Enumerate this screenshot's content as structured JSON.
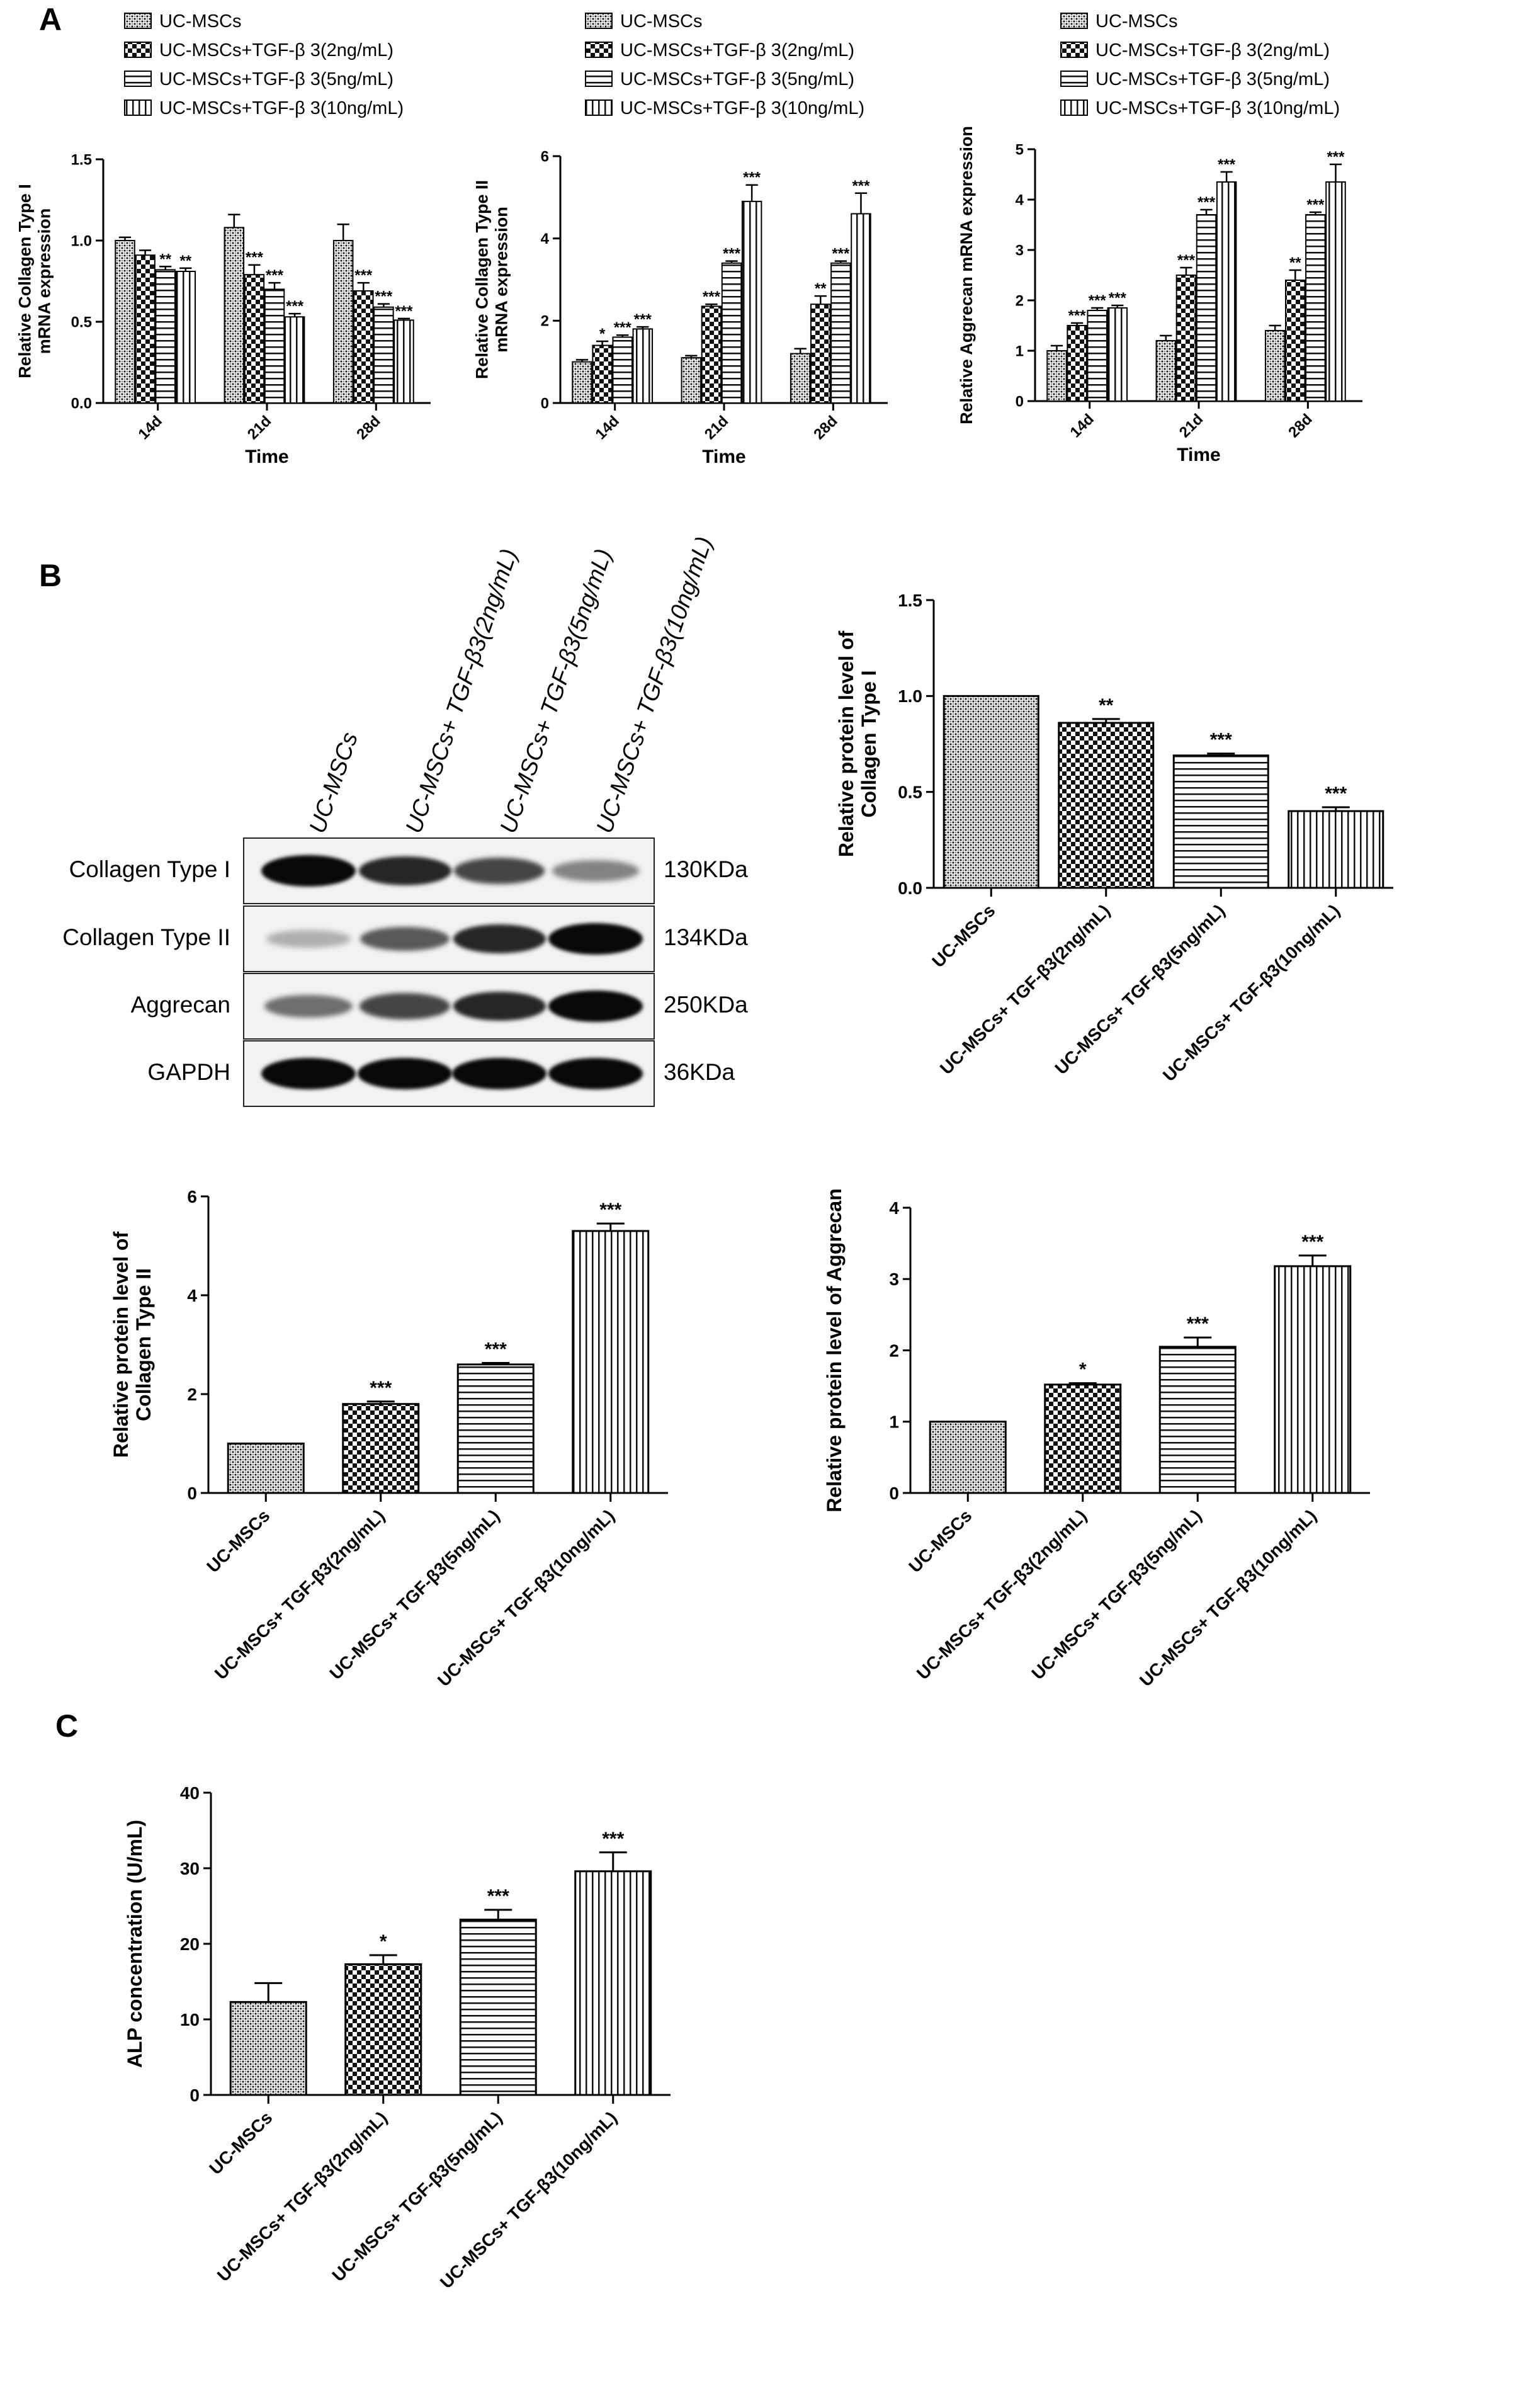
{
  "panels": {
    "a": "A",
    "b": "B",
    "c": "C"
  },
  "patterns": {
    "uc": "dots",
    "tgf2": "checker",
    "tgf5": "hlines",
    "tgf10": "vlines"
  },
  "blot": {
    "lanes": [
      "UC-MSCs",
      "UC-MSCs+ TGF-β3(2ng/mL)",
      "UC-MSCs+ TGF-β3(5ng/mL)",
      "UC-MSCs+ TGF-β3(10ng/mL)"
    ],
    "rows": [
      {
        "label": "Collagen Type I",
        "kda": "130KDa",
        "intensity": [
          1.0,
          0.85,
          0.7,
          0.4
        ]
      },
      {
        "label": "Collagen Type II",
        "kda": "134KDa",
        "intensity": [
          0.18,
          0.6,
          0.85,
          1.0
        ]
      },
      {
        "label": "Aggrecan",
        "kda": "250KDa",
        "intensity": [
          0.5,
          0.7,
          0.85,
          1.0
        ]
      },
      {
        "label": "GAPDH",
        "kda": "36KDa",
        "intensity": [
          1.0,
          1.0,
          1.0,
          1.0
        ]
      }
    ]
  },
  "chart_data": [
    {
      "id": "a1",
      "type": "bar",
      "legend": [
        "UC-MSCs",
        "UC-MSCs+TGF-β 3(2ng/mL)",
        "UC-MSCs+TGF-β 3(5ng/mL)",
        "UC-MSCs+TGF-β 3(10ng/mL)"
      ],
      "categories": [
        "14d",
        "21d",
        "28d"
      ],
      "series": [
        {
          "values": [
            1.0,
            1.08,
            1.0
          ],
          "err": [
            0.02,
            0.08,
            0.1
          ],
          "sig": [
            "",
            "",
            ""
          ]
        },
        {
          "values": [
            0.91,
            0.79,
            0.69
          ],
          "err": [
            0.03,
            0.06,
            0.05
          ],
          "sig": [
            "",
            "***",
            "***"
          ]
        },
        {
          "values": [
            0.82,
            0.7,
            0.59
          ],
          "err": [
            0.02,
            0.04,
            0.02
          ],
          "sig": [
            "**",
            "***",
            "***"
          ]
        },
        {
          "values": [
            0.81,
            0.53,
            0.51
          ],
          "err": [
            0.02,
            0.02,
            0.01
          ],
          "sig": [
            "**",
            "***",
            "***"
          ]
        }
      ],
      "ylabel": [
        "Relative Collagen Type I",
        "mRNA expression"
      ],
      "xlabel": "Time",
      "ylim": [
        0,
        1.5
      ],
      "yticks": [
        "0.0",
        "0.5",
        "1.0",
        "1.5"
      ],
      "ytick_values": [
        0,
        0.5,
        1.0,
        1.5
      ]
    },
    {
      "id": "a2",
      "type": "bar",
      "legend": [
        "UC-MSCs",
        "UC-MSCs+TGF-β 3(2ng/mL)",
        "UC-MSCs+TGF-β 3(5ng/mL)",
        "UC-MSCs+TGF-β 3(10ng/mL)"
      ],
      "categories": [
        "14d",
        "21d",
        "28d"
      ],
      "series": [
        {
          "values": [
            1.0,
            1.1,
            1.2
          ],
          "err": [
            0.05,
            0.05,
            0.12
          ],
          "sig": [
            "",
            "",
            ""
          ]
        },
        {
          "values": [
            1.4,
            2.35,
            2.4
          ],
          "err": [
            0.1,
            0.05,
            0.2
          ],
          "sig": [
            "*",
            "***",
            "**"
          ]
        },
        {
          "values": [
            1.6,
            3.4,
            3.4
          ],
          "err": [
            0.05,
            0.05,
            0.05
          ],
          "sig": [
            "***",
            "***",
            "***"
          ]
        },
        {
          "values": [
            1.8,
            4.9,
            4.6
          ],
          "err": [
            0.05,
            0.4,
            0.5
          ],
          "sig": [
            "***",
            "***",
            "***"
          ]
        }
      ],
      "ylabel": [
        "Relative Collagen Type II",
        "mRNA expression"
      ],
      "xlabel": "Time",
      "ylim": [
        0,
        6
      ],
      "yticks": [
        "0",
        "2",
        "4",
        "6"
      ],
      "ytick_values": [
        0,
        2,
        4,
        6
      ]
    },
    {
      "id": "a3",
      "type": "bar",
      "legend": [
        "UC-MSCs",
        "UC-MSCs+TGF-β 3(2ng/mL)",
        "UC-MSCs+TGF-β 3(5ng/mL)",
        "UC-MSCs+TGF-β 3(10ng/mL)"
      ],
      "categories": [
        "14d",
        "21d",
        "28d"
      ],
      "series": [
        {
          "values": [
            1.0,
            1.2,
            1.4
          ],
          "err": [
            0.1,
            0.1,
            0.1
          ],
          "sig": [
            "",
            "",
            ""
          ]
        },
        {
          "values": [
            1.5,
            2.5,
            2.4
          ],
          "err": [
            0.05,
            0.15,
            0.2
          ],
          "sig": [
            "***",
            "***",
            "**"
          ]
        },
        {
          "values": [
            1.8,
            3.7,
            3.7
          ],
          "err": [
            0.05,
            0.1,
            0.05
          ],
          "sig": [
            "***",
            "***",
            "***"
          ]
        },
        {
          "values": [
            1.85,
            4.35,
            4.35
          ],
          "err": [
            0.05,
            0.2,
            0.35
          ],
          "sig": [
            "***",
            "***",
            "***"
          ]
        }
      ],
      "ylabel": [
        "Relative Aggrecan mRNA expression"
      ],
      "xlabel": "Time",
      "ylim": [
        0,
        5
      ],
      "yticks": [
        "0",
        "1",
        "2",
        "3",
        "4",
        "5"
      ],
      "ytick_values": [
        0,
        1,
        2,
        3,
        4,
        5
      ]
    },
    {
      "id": "b1",
      "type": "bar",
      "categories": [
        "UC-MSCs",
        "UC-MSCs+ TGF-β3(2ng/mL)",
        "UC-MSCs+ TGF-β3(5ng/mL)",
        "UC-MSCs+ TGF-β3(10ng/mL)"
      ],
      "values": [
        1.0,
        0.86,
        0.69,
        0.4
      ],
      "err": [
        0.0,
        0.02,
        0.01,
        0.02
      ],
      "sig": [
        "",
        "**",
        "***",
        "***"
      ],
      "ylabel": [
        "Relative protein level of",
        "Collagen Type I"
      ],
      "ylim": [
        0,
        1.5
      ],
      "yticks": [
        "0.0",
        "0.5",
        "1.0",
        "1.5"
      ],
      "ytick_values": [
        0,
        0.5,
        1.0,
        1.5
      ]
    },
    {
      "id": "b2",
      "type": "bar",
      "categories": [
        "UC-MSCs",
        "UC-MSCs+ TGF-β3(2ng/mL)",
        "UC-MSCs+ TGF-β3(5ng/mL)",
        "UC-MSCs+ TGF-β3(10ng/mL)"
      ],
      "values": [
        1.0,
        1.8,
        2.6,
        5.3
      ],
      "err": [
        0.0,
        0.05,
        0.03,
        0.15
      ],
      "sig": [
        "",
        "***",
        "***",
        "***"
      ],
      "ylabel": [
        "Relative protein level of",
        "Collagen Type II"
      ],
      "ylim": [
        0,
        6
      ],
      "yticks": [
        "0",
        "2",
        "4",
        "6"
      ],
      "ytick_values": [
        0,
        2,
        4,
        6
      ]
    },
    {
      "id": "b3",
      "type": "bar",
      "categories": [
        "UC-MSCs",
        "UC-MSCs+ TGF-β3(2ng/mL)",
        "UC-MSCs+ TGF-β3(5ng/mL)",
        "UC-MSCs+ TGF-β3(10ng/mL)"
      ],
      "values": [
        1.0,
        1.52,
        2.05,
        3.18
      ],
      "err": [
        0.0,
        0.02,
        0.13,
        0.15
      ],
      "sig": [
        "",
        "*",
        "***",
        "***"
      ],
      "ylabel": [
        "Relative protein level of Aggrecan"
      ],
      "ylim": [
        0,
        4
      ],
      "yticks": [
        "0",
        "1",
        "2",
        "3",
        "4"
      ],
      "ytick_values": [
        0,
        1,
        2,
        3,
        4
      ]
    },
    {
      "id": "c1",
      "type": "bar",
      "categories": [
        "UC-MSCs",
        "UC-MSCs+ TGF-β3(2ng/mL)",
        "UC-MSCs+ TGF-β3(5ng/mL)",
        "UC-MSCs+ TGF-β3(10ng/mL)"
      ],
      "values": [
        12.3,
        17.3,
        23.2,
        29.6
      ],
      "err": [
        2.5,
        1.2,
        1.3,
        2.5
      ],
      "sig": [
        "",
        "*",
        "***",
        "***"
      ],
      "ylabel": [
        "ALP concentration (U/mL)"
      ],
      "ylim": [
        0,
        40
      ],
      "yticks": [
        "0",
        "10",
        "20",
        "30",
        "40"
      ],
      "ytick_values": [
        0,
        10,
        20,
        30,
        40
      ]
    }
  ]
}
